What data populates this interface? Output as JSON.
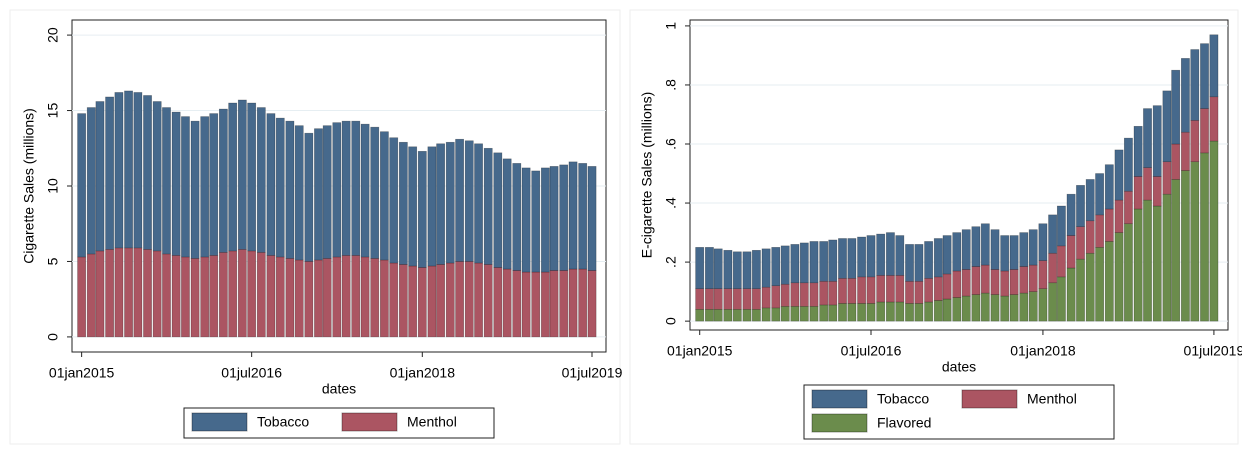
{
  "chart_data": [
    {
      "type": "stacked-bar",
      "ylabel": "Cigarette Sales (millions)",
      "xlabel": "dates",
      "x": [
        "2015-01-01",
        "2015-02-01",
        "2015-03-01",
        "2015-04-01",
        "2015-05-01",
        "2015-06-01",
        "2015-07-01",
        "2015-08-01",
        "2015-09-01",
        "2015-10-01",
        "2015-11-01",
        "2015-12-01",
        "2016-01-01",
        "2016-02-01",
        "2016-03-01",
        "2016-04-01",
        "2016-05-01",
        "2016-06-01",
        "2016-07-01",
        "2016-08-01",
        "2016-09-01",
        "2016-10-01",
        "2016-11-01",
        "2016-12-01",
        "2017-01-01",
        "2017-02-01",
        "2017-03-01",
        "2017-04-01",
        "2017-05-01",
        "2017-06-01",
        "2017-07-01",
        "2017-08-01",
        "2017-09-01",
        "2017-10-01",
        "2017-11-01",
        "2017-12-01",
        "2018-01-01",
        "2018-02-01",
        "2018-03-01",
        "2018-04-01",
        "2018-05-01",
        "2018-06-01",
        "2018-07-01",
        "2018-08-01",
        "2018-09-01",
        "2018-10-01",
        "2018-11-01",
        "2018-12-01",
        "2019-01-01",
        "2019-02-01",
        "2019-03-01",
        "2019-04-01",
        "2019-05-01",
        "2019-06-01",
        "2019-07-01"
      ],
      "series": [
        {
          "name": "Tobacco",
          "color": "#46698c",
          "values": [
            9.5,
            9.7,
            9.9,
            10.1,
            10.3,
            10.4,
            10.3,
            10.2,
            9.9,
            9.7,
            9.5,
            9.3,
            9.1,
            9.3,
            9.4,
            9.5,
            9.8,
            9.9,
            9.8,
            9.6,
            9.4,
            9.2,
            9.1,
            8.9,
            8.5,
            8.7,
            8.8,
            8.9,
            8.9,
            8.9,
            8.8,
            8.7,
            8.5,
            8.3,
            8.1,
            7.9,
            7.7,
            7.9,
            8.0,
            8.0,
            8.1,
            8.0,
            7.9,
            7.7,
            7.6,
            7.3,
            7.1,
            6.9,
            6.7,
            6.9,
            6.9,
            7.0,
            7.1,
            7.0,
            6.9
          ]
        },
        {
          "name": "Menthol",
          "color": "#ab5562",
          "values": [
            5.3,
            5.5,
            5.7,
            5.8,
            5.9,
            5.9,
            5.9,
            5.8,
            5.7,
            5.5,
            5.4,
            5.3,
            5.2,
            5.3,
            5.4,
            5.6,
            5.7,
            5.8,
            5.7,
            5.6,
            5.4,
            5.3,
            5.2,
            5.1,
            5.0,
            5.1,
            5.2,
            5.3,
            5.4,
            5.4,
            5.3,
            5.2,
            5.1,
            4.9,
            4.8,
            4.7,
            4.6,
            4.7,
            4.8,
            4.9,
            5.0,
            5.0,
            4.9,
            4.8,
            4.6,
            4.5,
            4.4,
            4.3,
            4.3,
            4.3,
            4.4,
            4.4,
            4.5,
            4.5,
            4.4
          ]
        }
      ],
      "xlim": [
        "2014-12-01",
        "2019-08-15"
      ],
      "xticks": [
        {
          "value": "2015-01-01",
          "label": "01jan2015"
        },
        {
          "value": "2016-07-01",
          "label": "01jul2016"
        },
        {
          "value": "2018-01-01",
          "label": "01jan2018"
        },
        {
          "value": "2019-07-01",
          "label": "01jul2019"
        }
      ],
      "ylim": [
        -1,
        21
      ],
      "yticks": [
        0,
        5,
        10,
        15,
        20
      ],
      "grid": true
    },
    {
      "type": "stacked-bar",
      "ylabel": "E-cigarette Sales (millions)",
      "xlabel": "dates",
      "x": [
        "2015-01-01",
        "2015-02-01",
        "2015-03-01",
        "2015-04-01",
        "2015-05-01",
        "2015-06-01",
        "2015-07-01",
        "2015-08-01",
        "2015-09-01",
        "2015-10-01",
        "2015-11-01",
        "2015-12-01",
        "2016-01-01",
        "2016-02-01",
        "2016-03-01",
        "2016-04-01",
        "2016-05-01",
        "2016-06-01",
        "2016-07-01",
        "2016-08-01",
        "2016-09-01",
        "2016-10-01",
        "2016-11-01",
        "2016-12-01",
        "2017-01-01",
        "2017-02-01",
        "2017-03-01",
        "2017-04-01",
        "2017-05-01",
        "2017-06-01",
        "2017-07-01",
        "2017-08-01",
        "2017-09-01",
        "2017-10-01",
        "2017-11-01",
        "2017-12-01",
        "2018-01-01",
        "2018-02-01",
        "2018-03-01",
        "2018-04-01",
        "2018-05-01",
        "2018-06-01",
        "2018-07-01",
        "2018-08-01",
        "2018-09-01",
        "2018-10-01",
        "2018-11-01",
        "2018-12-01",
        "2019-01-01",
        "2019-02-01",
        "2019-03-01",
        "2019-04-01",
        "2019-05-01",
        "2019-06-01",
        "2019-07-01"
      ],
      "series": [
        {
          "name": "Tobacco",
          "color": "#46698c",
          "values": [
            0.14,
            0.14,
            0.135,
            0.13,
            0.125,
            0.125,
            0.13,
            0.13,
            0.13,
            0.13,
            0.13,
            0.135,
            0.14,
            0.135,
            0.14,
            0.135,
            0.135,
            0.135,
            0.14,
            0.14,
            0.145,
            0.135,
            0.125,
            0.125,
            0.125,
            0.13,
            0.13,
            0.13,
            0.135,
            0.135,
            0.14,
            0.135,
            0.12,
            0.115,
            0.115,
            0.12,
            0.125,
            0.13,
            0.135,
            0.14,
            0.14,
            0.14,
            0.14,
            0.15,
            0.17,
            0.18,
            0.17,
            0.2,
            0.24,
            0.24,
            0.25,
            0.25,
            0.24,
            0.22,
            0.21
          ]
        },
        {
          "name": "Menthol",
          "color": "#ab5562",
          "values": [
            0.07,
            0.07,
            0.07,
            0.07,
            0.07,
            0.07,
            0.07,
            0.07,
            0.075,
            0.075,
            0.08,
            0.08,
            0.08,
            0.08,
            0.08,
            0.085,
            0.085,
            0.09,
            0.09,
            0.09,
            0.09,
            0.09,
            0.075,
            0.075,
            0.08,
            0.08,
            0.085,
            0.09,
            0.09,
            0.095,
            0.095,
            0.085,
            0.085,
            0.085,
            0.09,
            0.09,
            0.095,
            0.1,
            0.105,
            0.11,
            0.11,
            0.11,
            0.11,
            0.11,
            0.11,
            0.11,
            0.11,
            0.11,
            0.1,
            0.11,
            0.12,
            0.13,
            0.14,
            0.15,
            0.15
          ]
        },
        {
          "name": "Flavored",
          "color": "#6b8c4c",
          "values": [
            0.04,
            0.04,
            0.04,
            0.04,
            0.04,
            0.04,
            0.04,
            0.045,
            0.045,
            0.05,
            0.05,
            0.05,
            0.05,
            0.055,
            0.055,
            0.06,
            0.06,
            0.06,
            0.06,
            0.065,
            0.065,
            0.065,
            0.06,
            0.06,
            0.065,
            0.07,
            0.075,
            0.08,
            0.085,
            0.09,
            0.095,
            0.09,
            0.085,
            0.09,
            0.095,
            0.1,
            0.11,
            0.13,
            0.15,
            0.18,
            0.21,
            0.23,
            0.25,
            0.27,
            0.3,
            0.33,
            0.38,
            0.41,
            0.39,
            0.43,
            0.48,
            0.51,
            0.54,
            0.57,
            0.61
          ]
        }
      ],
      "xlim": [
        "2014-12-01",
        "2019-08-15"
      ],
      "xticks": [
        {
          "value": "2015-01-01",
          "label": "01jan2015"
        },
        {
          "value": "2016-07-01",
          "label": "01jul2016"
        },
        {
          "value": "2018-01-01",
          "label": "01jan2018"
        },
        {
          "value": "2019-07-01",
          "label": "01jul2019"
        }
      ],
      "ylim": [
        -0.03,
        1.02
      ],
      "yticks": [
        0,
        {
          "value": 0.2,
          "label": ".2"
        },
        {
          "value": 0.4,
          "label": ".4"
        },
        {
          "value": 0.6,
          "label": ".6"
        },
        {
          "value": 0.8,
          "label": ".8"
        },
        1
      ],
      "grid": true
    }
  ]
}
